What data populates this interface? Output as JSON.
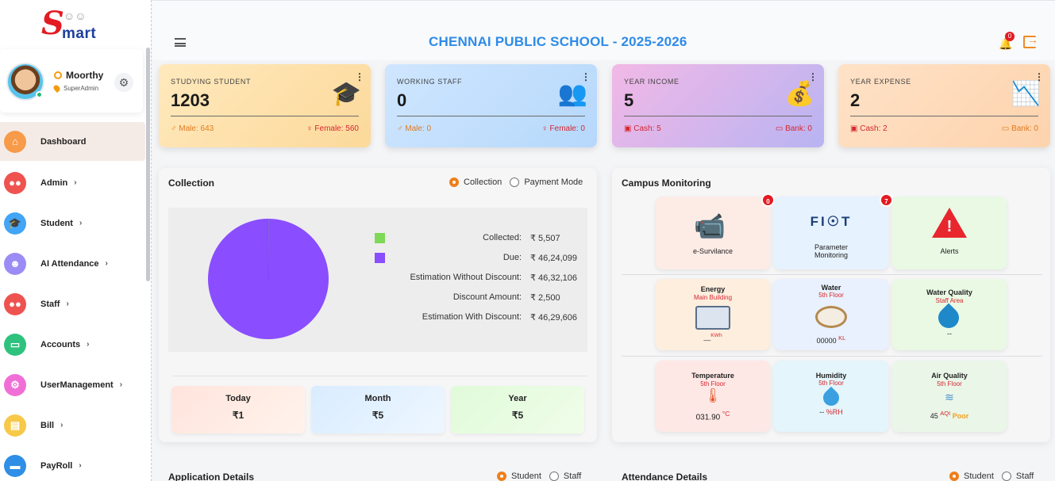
{
  "logo": {
    "letter": "S",
    "rest": "mart"
  },
  "profile": {
    "name": "Moorthy",
    "role": "SuperAdmin"
  },
  "nav": [
    {
      "label": "Dashboard",
      "color": "#f79a4a",
      "icon": "home-icon",
      "chevron": ""
    },
    {
      "label": "Admin",
      "color": "#ef5350",
      "icon": "users-icon",
      "chevron": "›"
    },
    {
      "label": "Student",
      "color": "#42a5f5",
      "icon": "graduation-cap-icon",
      "chevron": "›"
    },
    {
      "label": "AI Attendance",
      "color": "#9b8cf5",
      "icon": "robot-icon",
      "chevron": "›"
    },
    {
      "label": "Staff",
      "color": "#ef5350",
      "icon": "staff-icon",
      "chevron": "›"
    },
    {
      "label": "Accounts",
      "color": "#2ec27e",
      "icon": "wallet-icon",
      "chevron": "›"
    },
    {
      "label": "UserManagement",
      "color": "#f06fd6",
      "icon": "user-settings-icon",
      "chevron": "›"
    },
    {
      "label": "Bill",
      "color": "#f7c948",
      "icon": "bill-icon",
      "chevron": "›"
    },
    {
      "label": "PayRoll",
      "color": "#2f8fe6",
      "icon": "payroll-icon",
      "chevron": "›"
    }
  ],
  "header": {
    "title": "CHENNAI PUBLIC SCHOOL - 2025-2026",
    "notifications": "0"
  },
  "stats": [
    {
      "label": "STUDYING STUDENT",
      "value": "1203",
      "left": "♂ Male: 643",
      "right": "♀ Female: 560",
      "icon": "graduation-cap-icon",
      "glyph": "🎓"
    },
    {
      "label": "WORKING STAFF",
      "value": "0",
      "left": "♂ Male: 0",
      "right": "♀ Female: 0",
      "icon": "staff-group-icon",
      "glyph": "👥"
    },
    {
      "label": "YEAR INCOME",
      "value": "5",
      "left": "Cash: 5",
      "right": "Bank: 0",
      "icon": "income-hand-icon",
      "glyph": "💰"
    },
    {
      "label": "YEAR EXPENSE",
      "value": "2",
      "left": "Cash: 2",
      "right": "Bank: 0",
      "icon": "expense-chart-icon",
      "glyph": "📉"
    }
  ],
  "collection": {
    "title": "Collection",
    "radio1": "Collection",
    "radio2": "Payment Mode",
    "rows": [
      {
        "name": "Collected",
        "amount": "₹ 5,507",
        "color": "#7ed957"
      },
      {
        "name": "Due",
        "amount": "₹ 46,24,099",
        "color": "#8a4dff"
      },
      {
        "name": "Estimation Without Discount",
        "amount": "₹ 46,32,106",
        "color": ""
      },
      {
        "name": "Discount Amount",
        "amount": "₹ 2,500",
        "color": ""
      },
      {
        "name": "Estimation With Discount",
        "amount": "₹ 46,29,606",
        "color": ""
      }
    ],
    "summary": [
      {
        "title": "Today",
        "value": "₹1"
      },
      {
        "title": "Month",
        "value": "₹5"
      },
      {
        "title": "Year",
        "value": "₹5"
      }
    ]
  },
  "chart_data": {
    "type": "pie",
    "categories": [
      "Collected",
      "Due"
    ],
    "values": [
      5507,
      4624099
    ],
    "colors": [
      "#7ed957",
      "#8a4dff"
    ]
  },
  "campus": {
    "title": "Campus Monitoring",
    "tiles_top": [
      {
        "name": "e-Survilance",
        "badge": "0"
      },
      {
        "name": "Parameter Monitoring",
        "badge": "7",
        "logo": "FI☉T"
      },
      {
        "name": "Alerts",
        "badge": ""
      }
    ],
    "tiles_mid": [
      {
        "name": "Energy",
        "sub": "Main Building",
        "reading": "__",
        "unit": "KWh"
      },
      {
        "name": "Water",
        "sub": "5th Floor",
        "reading": "00000",
        "unit": "KL"
      },
      {
        "name": "Water Quality",
        "sub": "Staff Area",
        "reading": "--",
        "unit": ""
      }
    ],
    "tiles_bot": [
      {
        "name": "Temperature",
        "sub": "5th Floor",
        "reading": "031.90",
        "unit": "°C"
      },
      {
        "name": "Humidity",
        "sub": "5th Floor",
        "reading": "--",
        "unit": "%RH"
      },
      {
        "name": "Air Quality",
        "sub": "5th Floor",
        "reading": "45",
        "unit": "AQI",
        "status": "Poor"
      }
    ]
  },
  "bottom": {
    "application_title": "Application Details",
    "attendance_title": "Attendance Details",
    "opt_student": "Student",
    "opt_staff": "Staff"
  }
}
